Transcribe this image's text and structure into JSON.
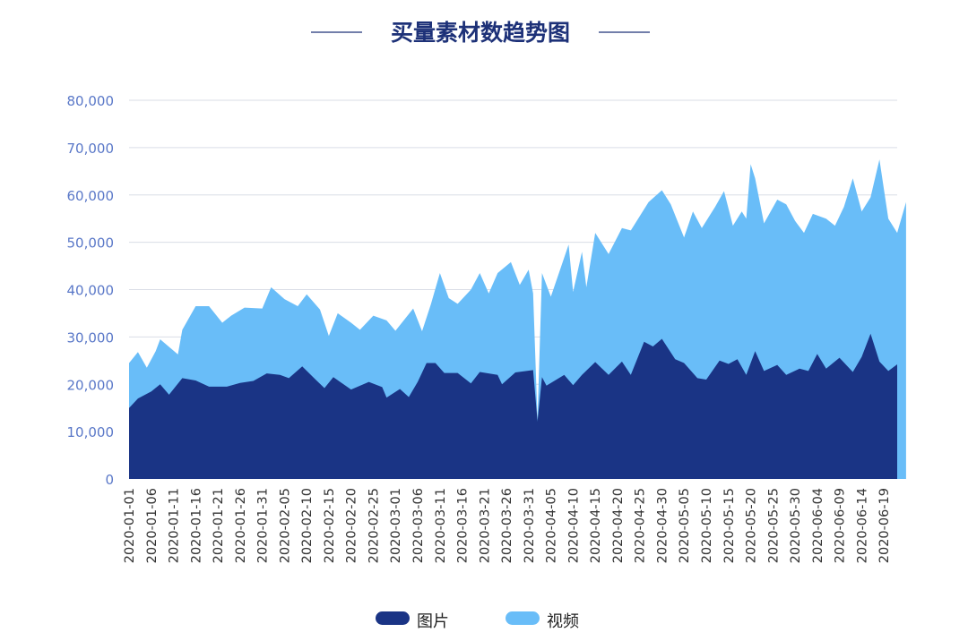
{
  "chart_data": {
    "type": "area",
    "stacked": true,
    "title": "买量素材数趋势图",
    "xlabel": "",
    "ylabel": "",
    "ylim": [
      0,
      80000
    ],
    "y_ticks": [
      0,
      10000,
      20000,
      30000,
      40000,
      50000,
      60000,
      70000,
      80000
    ],
    "y_tick_labels": [
      "0",
      "10,000",
      "20,000",
      "30,000",
      "40,000",
      "50,000",
      "60,000",
      "70,000",
      "80,000"
    ],
    "x_start": "2020-01-01",
    "x_end": "2020-06-22",
    "x_tick_labels": [
      "2020-01-01",
      "2020-01-06",
      "2020-01-11",
      "2020-01-16",
      "2020-01-21",
      "2020-01-26",
      "2020-01-31",
      "2020-02-05",
      "2020-02-10",
      "2020-02-15",
      "2020-02-20",
      "2020-02-25",
      "2020-03-01",
      "2020-03-06",
      "2020-03-11",
      "2020-03-16",
      "2020-03-21",
      "2020-03-26",
      "2020-03-31",
      "2020-04-05",
      "2020-04-10",
      "2020-04-15",
      "2020-04-20",
      "2020-04-25",
      "2020-04-30",
      "2020-05-05",
      "2020-05-10",
      "2020-05-15",
      "2020-05-20",
      "2020-05-25",
      "2020-05-30",
      "2020-06-04",
      "2020-06-09",
      "2020-06-14",
      "2020-06-19"
    ],
    "grid": true,
    "legend": "bottom-center",
    "colors": {
      "图片": "#1a3485",
      "视频": "#69bdf8",
      "title": "#1d3178",
      "tick": "#5a78c8",
      "grid": "#d9dde6"
    },
    "series": [
      {
        "name": "图片",
        "points": [
          [
            "2020-01-01",
            15000
          ],
          [
            "2020-01-03",
            17000
          ],
          [
            "2020-01-06",
            18500
          ],
          [
            "2020-01-08",
            20000
          ],
          [
            "2020-01-10",
            17800
          ],
          [
            "2020-01-13",
            21300
          ],
          [
            "2020-01-16",
            20800
          ],
          [
            "2020-01-19",
            19500
          ],
          [
            "2020-01-23",
            19500
          ],
          [
            "2020-01-26",
            20300
          ],
          [
            "2020-01-29",
            20700
          ],
          [
            "2020-02-01",
            22300
          ],
          [
            "2020-02-04",
            22000
          ],
          [
            "2020-02-06",
            21300
          ],
          [
            "2020-02-09",
            23800
          ],
          [
            "2020-02-12",
            21000
          ],
          [
            "2020-02-14",
            19200
          ],
          [
            "2020-02-16",
            21500
          ],
          [
            "2020-02-20",
            18900
          ],
          [
            "2020-02-24",
            20500
          ],
          [
            "2020-02-27",
            19400
          ],
          [
            "2020-02-28",
            17200
          ],
          [
            "2020-03-02",
            19000
          ],
          [
            "2020-03-04",
            17300
          ],
          [
            "2020-03-06",
            20500
          ],
          [
            "2020-03-08",
            24500
          ],
          [
            "2020-03-10",
            24500
          ],
          [
            "2020-03-12",
            22400
          ],
          [
            "2020-03-15",
            22400
          ],
          [
            "2020-03-18",
            20200
          ],
          [
            "2020-03-20",
            22600
          ],
          [
            "2020-03-24",
            22000
          ],
          [
            "2020-03-25",
            20000
          ],
          [
            "2020-03-28",
            22500
          ],
          [
            "2020-04-01",
            23000
          ],
          [
            "2020-04-02",
            12200
          ],
          [
            "2020-04-03",
            21500
          ],
          [
            "2020-04-04",
            19700
          ],
          [
            "2020-04-08",
            22000
          ],
          [
            "2020-04-10",
            19800
          ],
          [
            "2020-04-12",
            22000
          ],
          [
            "2020-04-15",
            24700
          ],
          [
            "2020-04-18",
            22000
          ],
          [
            "2020-04-21",
            24800
          ],
          [
            "2020-04-23",
            22000
          ],
          [
            "2020-04-26",
            29000
          ],
          [
            "2020-04-28",
            28000
          ],
          [
            "2020-04-30",
            29600
          ],
          [
            "2020-05-03",
            25300
          ],
          [
            "2020-05-05",
            24500
          ],
          [
            "2020-05-08",
            21300
          ],
          [
            "2020-05-10",
            21000
          ],
          [
            "2020-05-13",
            25000
          ],
          [
            "2020-05-15",
            24300
          ],
          [
            "2020-05-17",
            25300
          ],
          [
            "2020-05-19",
            22000
          ],
          [
            "2020-05-21",
            27000
          ],
          [
            "2020-05-23",
            22800
          ],
          [
            "2020-05-26",
            24100
          ],
          [
            "2020-05-28",
            22000
          ],
          [
            "2020-05-31",
            23300
          ],
          [
            "2020-06-02",
            22800
          ],
          [
            "2020-06-04",
            26400
          ],
          [
            "2020-06-06",
            23300
          ],
          [
            "2020-06-09",
            25600
          ],
          [
            "2020-06-12",
            22600
          ],
          [
            "2020-06-14",
            25800
          ],
          [
            "2020-06-16",
            30700
          ],
          [
            "2020-06-18",
            24800
          ],
          [
            "2020-06-20",
            22800
          ],
          [
            "2020-06-22",
            24200
          ]
        ]
      },
      {
        "name": "视频",
        "stacked_total_points": [
          [
            "2020-01-01",
            24500
          ],
          [
            "2020-01-03",
            26800
          ],
          [
            "2020-01-05",
            23500
          ],
          [
            "2020-01-07",
            27000
          ],
          [
            "2020-01-08",
            29500
          ],
          [
            "2020-01-12",
            26300
          ],
          [
            "2020-01-13",
            31500
          ],
          [
            "2020-01-16",
            36500
          ],
          [
            "2020-01-19",
            36500
          ],
          [
            "2020-01-22",
            33000
          ],
          [
            "2020-01-24",
            34500
          ],
          [
            "2020-01-27",
            36200
          ],
          [
            "2020-01-31",
            36000
          ],
          [
            "2020-02-02",
            40500
          ],
          [
            "2020-02-05",
            38000
          ],
          [
            "2020-02-08",
            36500
          ],
          [
            "2020-02-10",
            39000
          ],
          [
            "2020-02-13",
            35800
          ],
          [
            "2020-02-15",
            30200
          ],
          [
            "2020-02-17",
            35000
          ],
          [
            "2020-02-20",
            33000
          ],
          [
            "2020-02-22",
            31500
          ],
          [
            "2020-02-25",
            34500
          ],
          [
            "2020-02-28",
            33500
          ],
          [
            "2020-03-01",
            31300
          ],
          [
            "2020-03-05",
            36000
          ],
          [
            "2020-03-07",
            31200
          ],
          [
            "2020-03-09",
            37000
          ],
          [
            "2020-03-11",
            43500
          ],
          [
            "2020-03-13",
            38200
          ],
          [
            "2020-03-15",
            37000
          ],
          [
            "2020-03-18",
            40000
          ],
          [
            "2020-03-20",
            43500
          ],
          [
            "2020-03-22",
            39200
          ],
          [
            "2020-03-24",
            43500
          ],
          [
            "2020-03-27",
            45800
          ],
          [
            "2020-03-29",
            41000
          ],
          [
            "2020-03-31",
            44200
          ],
          [
            "2020-04-01",
            39200
          ],
          [
            "2020-04-02",
            12500
          ],
          [
            "2020-04-03",
            43500
          ],
          [
            "2020-04-05",
            38500
          ],
          [
            "2020-04-07",
            44000
          ],
          [
            "2020-04-09",
            49500
          ],
          [
            "2020-04-10",
            39500
          ],
          [
            "2020-04-12",
            48000
          ],
          [
            "2020-04-13",
            40500
          ],
          [
            "2020-04-15",
            52000
          ],
          [
            "2020-04-18",
            47500
          ],
          [
            "2020-04-21",
            53000
          ],
          [
            "2020-04-23",
            52500
          ],
          [
            "2020-04-27",
            58500
          ],
          [
            "2020-04-30",
            61000
          ],
          [
            "2020-05-02",
            58000
          ],
          [
            "2020-05-05",
            51000
          ],
          [
            "2020-05-07",
            56500
          ],
          [
            "2020-05-09",
            53000
          ],
          [
            "2020-05-12",
            57500
          ],
          [
            "2020-05-14",
            60800
          ],
          [
            "2020-05-16",
            53500
          ],
          [
            "2020-05-18",
            56500
          ],
          [
            "2020-05-19",
            55000
          ],
          [
            "2020-05-20",
            66500
          ],
          [
            "2020-05-21",
            63500
          ],
          [
            "2020-05-23",
            54000
          ],
          [
            "2020-05-26",
            59000
          ],
          [
            "2020-05-28",
            58000
          ],
          [
            "2020-05-30",
            54500
          ],
          [
            "2020-06-01",
            52000
          ],
          [
            "2020-06-03",
            56000
          ],
          [
            "2020-06-06",
            55000
          ],
          [
            "2020-06-08",
            53500
          ],
          [
            "2020-06-10",
            57500
          ],
          [
            "2020-06-12",
            63500
          ],
          [
            "2020-06-14",
            56500
          ],
          [
            "2020-06-16",
            59500
          ],
          [
            "2020-06-18",
            67500
          ],
          [
            "2020-06-20",
            55000
          ],
          [
            "2020-06-22",
            52000
          ],
          [
            "2020-06-24",
            58500
          ]
        ]
      }
    ]
  }
}
